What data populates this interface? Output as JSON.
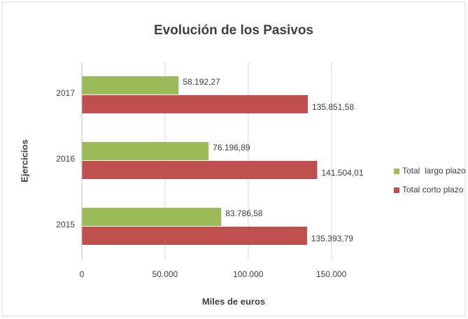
{
  "chart_data": {
    "type": "barh",
    "title": "Evolución de los Pasivos",
    "categories": [
      "2017",
      "2016",
      "2015"
    ],
    "series": [
      {
        "name": "Total  largo plazo",
        "color": "#9bbb59",
        "values": [
          58192.27,
          76196.89,
          83786.58
        ],
        "value_labels": [
          "58.192,27",
          "76.196,89",
          "83.786,58"
        ]
      },
      {
        "name": "Total corto plazo",
        "color": "#c0504d",
        "values": [
          135851.58,
          141504.01,
          135393.79
        ],
        "value_labels": [
          "135.851,58",
          "141.504,01",
          "135.393,79"
        ]
      }
    ],
    "xlabel": "Miles de euros",
    "ylabel": "Ejercicios",
    "xlim": [
      0,
      180000
    ],
    "xticks": [
      0,
      {
        "value": 50000,
        "label": "50.000"
      },
      {
        "value": 100000,
        "label": "100.000"
      },
      {
        "value": 150000,
        "label": "150.000"
      }
    ],
    "grid": true,
    "legend": "right"
  }
}
